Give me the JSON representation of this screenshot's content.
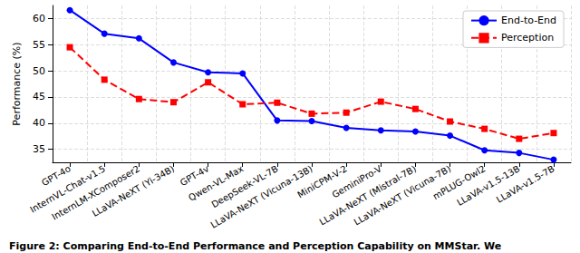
{
  "chart_data": {
    "type": "line",
    "y_label": "Performance (%)",
    "annotations": [
      "Figure 2: Comparing End-to-End Performance and Perception Capability on MMStar. We"
    ],
    "categories": [
      "GPT-4o",
      "InternVL-Chat-v1.5",
      "InternLM-XComposer2",
      "LLaVA-NeXT (Yi-34B)",
      "GPT-4v",
      "Qwen-VL-Max",
      "DeepSeek-VL-7B",
      "LLaVA-NeXT (Vicuna-13B)",
      "MiniCPM-V-2",
      "GeminiPro-V",
      "LLaVA-NeXT (Mistral-7B)",
      "LLaVA-NeXT (Vicuna-7B)",
      "mPLUG-Owl2",
      "LLaVA-v1.5-13B",
      "LLaVA-v1.5-7B"
    ],
    "series": [
      {
        "name": "End-to-End",
        "color": "#0000ff",
        "marker": "circle",
        "line_style": "solid",
        "values": [
          61.6,
          57.1,
          56.2,
          51.6,
          49.7,
          49.5,
          40.5,
          40.4,
          39.1,
          38.6,
          38.4,
          37.6,
          34.8,
          34.3,
          33.0
        ]
      },
      {
        "name": "Perception",
        "color": "#ff0000",
        "marker": "square",
        "line_style": "dashed",
        "values": [
          54.5,
          48.3,
          44.6,
          44.0,
          47.8,
          43.6,
          43.9,
          41.8,
          42.0,
          44.1,
          42.7,
          40.3,
          38.9,
          37.0,
          38.1
        ]
      }
    ],
    "ylim": [
      32.5,
      62.5
    ],
    "yticks": [
      35,
      40,
      45,
      50,
      55,
      60
    ],
    "grid": true,
    "legend": "upper right"
  }
}
